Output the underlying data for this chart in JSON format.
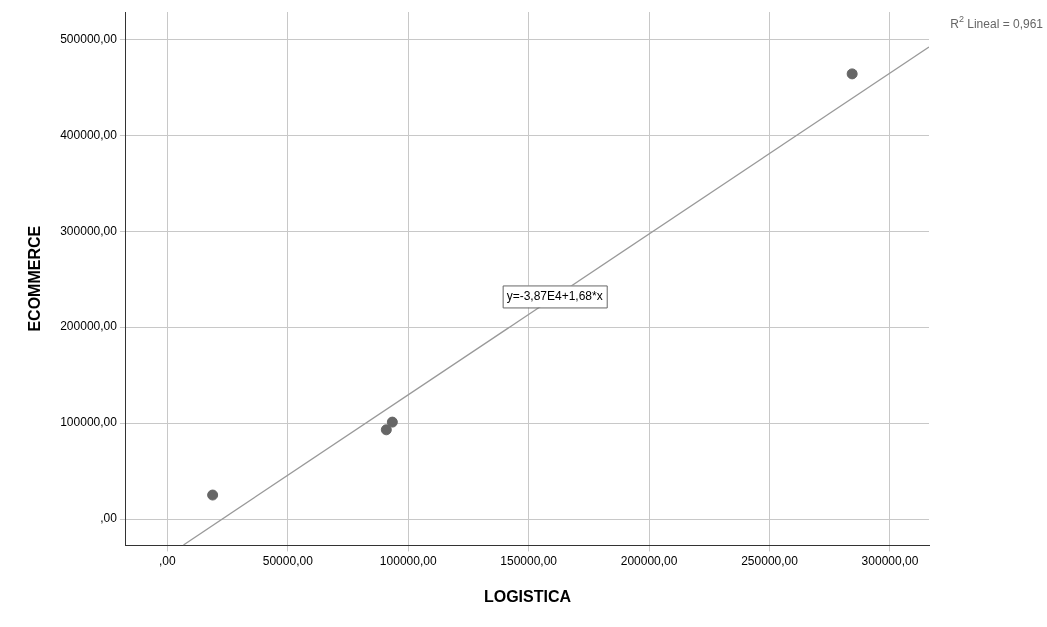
{
  "chart_data": {
    "type": "scatter",
    "xlabel": "LOGISTICA",
    "ylabel": "ECOMMERCE",
    "xlim": [
      -17200,
      316200
    ],
    "ylim": [
      -27500,
      528500
    ],
    "xticks": [
      {
        "value": 0,
        "label": ",00"
      },
      {
        "value": 50000,
        "label": "50000,00"
      },
      {
        "value": 100000,
        "label": "100000,00"
      },
      {
        "value": 150000,
        "label": "150000,00"
      },
      {
        "value": 200000,
        "label": "200000,00"
      },
      {
        "value": 250000,
        "label": "250000,00"
      },
      {
        "value": 300000,
        "label": "300000,00"
      }
    ],
    "yticks": [
      {
        "value": 0,
        "label": ",00"
      },
      {
        "value": 100000,
        "label": "100000,00"
      },
      {
        "value": 200000,
        "label": "200000,00"
      },
      {
        "value": 300000,
        "label": "300000,00"
      },
      {
        "value": 400000,
        "label": "400000,00"
      },
      {
        "value": 500000,
        "label": "500000,00"
      }
    ],
    "grid": true,
    "legend": false,
    "series": [
      {
        "type": "scatter",
        "color": "#666666",
        "marker": "circle",
        "x": [
          18800,
          90900,
          93400,
          284300
        ],
        "values": [
          25000,
          93000,
          101000,
          464000
        ]
      },
      {
        "type": "line",
        "color": "#999999",
        "line_style": "solid",
        "marker": "none",
        "x": [
          6700,
          316200
        ],
        "values": [
          -27000,
          492000
        ]
      }
    ],
    "annotations": [
      {
        "text": "y=-3,87E4+1,68*x",
        "x": 160800,
        "y": 232000
      },
      "R$^{2}$ Lineal = 0,961"
    ]
  }
}
